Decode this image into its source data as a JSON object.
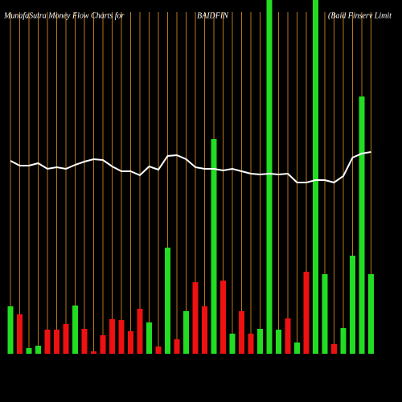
{
  "chart_data": {
    "type": "bar",
    "title": "MunafaSutra  Money Flow  Charts for",
    "symbol": "BAIDFIN",
    "company": "(Baid Finserv  Limit",
    "categories": [
      null,
      null,
      null,
      null,
      null,
      null,
      null,
      null,
      null,
      null,
      null,
      null,
      null,
      null,
      null,
      null,
      null,
      null,
      null,
      null,
      null,
      null,
      null,
      null,
      null,
      null,
      null,
      null,
      null,
      null,
      null,
      null,
      null,
      null,
      null,
      null,
      null,
      null,
      null,
      null
    ],
    "values": [
      59,
      49,
      7,
      10,
      30,
      30,
      37,
      60,
      31,
      3,
      23,
      43,
      42,
      28,
      56,
      39,
      9,
      132,
      18,
      53,
      89,
      59,
      267,
      91,
      25,
      53,
      25,
      31,
      440,
      30,
      44,
      14,
      102,
      440,
      99,
      12,
      32,
      122,
      320,
      99
    ],
    "bar_colors": [
      "#22dd22",
      "#ee1111",
      "#22dd22",
      "#22dd22",
      "#ee1111",
      "#ee1111",
      "#ee1111",
      "#22dd22",
      "#ee1111",
      "#ee1111",
      "#ee1111",
      "#ee1111",
      "#ee1111",
      "#ee1111",
      "#ee1111",
      "#22dd22",
      "#ee1111",
      "#22dd22",
      "#ee1111",
      "#22dd22",
      "#ee1111",
      "#ee1111",
      "#22dd22",
      "#ee1111",
      "#22dd22",
      "#ee1111",
      "#ee1111",
      "#22dd22",
      "#22dd22",
      "#22dd22",
      "#ee1111",
      "#22dd22",
      "#ee1111",
      "#22dd22",
      "#22dd22",
      "#ee1111",
      "#22dd22",
      "#22dd22",
      "#22dd22",
      "#22dd22"
    ],
    "line": {
      "color": "#ffffff",
      "values": [
        240,
        234,
        234,
        237,
        230,
        232,
        230,
        235,
        239,
        242,
        241,
        233,
        227,
        227,
        222,
        233,
        229,
        246,
        247,
        242,
        232,
        230,
        230,
        228,
        230,
        227,
        224,
        223,
        224,
        223,
        224,
        213,
        213,
        216,
        216,
        213,
        221,
        244,
        249,
        251
      ]
    },
    "ylim": [
      0,
      440
    ],
    "grid": true,
    "grid_color": "#b8751a"
  }
}
